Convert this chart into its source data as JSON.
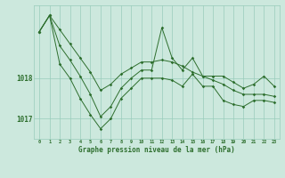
{
  "background_color": "#cce8dd",
  "grid_color": "#99ccbb",
  "line_color": "#2d6e2d",
  "xlabel": "Graphe pression niveau de la mer (hPa)",
  "ylabel_ticks": [
    1017,
    1018
  ],
  "xlim": [
    -0.5,
    23.5
  ],
  "ylim": [
    1016.5,
    1019.8
  ],
  "hours": [
    0,
    1,
    2,
    3,
    4,
    5,
    6,
    7,
    8,
    9,
    10,
    11,
    12,
    13,
    14,
    15,
    16,
    17,
    18,
    19,
    20,
    21,
    22,
    23
  ],
  "line1": [
    1019.15,
    1019.55,
    1019.2,
    1018.85,
    1018.5,
    1018.15,
    1017.7,
    1017.85,
    1018.1,
    1018.25,
    1018.4,
    1018.4,
    1018.45,
    1018.4,
    1018.3,
    1018.15,
    1018.05,
    1017.95,
    1017.85,
    1017.7,
    1017.6,
    1017.6,
    1017.6,
    1017.55
  ],
  "line2": [
    1019.15,
    1019.55,
    1018.8,
    1018.45,
    1018.05,
    1017.6,
    1017.05,
    1017.3,
    1017.75,
    1018.0,
    1018.2,
    1018.2,
    1019.25,
    1018.5,
    1018.2,
    1018.5,
    1018.05,
    1018.05,
    1018.05,
    1017.9,
    1017.75,
    1017.85,
    1018.05,
    1017.8
  ],
  "line3": [
    1019.15,
    1019.55,
    1018.35,
    1018.0,
    1017.5,
    1017.1,
    1016.75,
    1017.0,
    1017.5,
    1017.75,
    1018.0,
    1018.0,
    1018.0,
    1017.95,
    1017.8,
    1018.1,
    1017.8,
    1017.8,
    1017.45,
    1017.35,
    1017.3,
    1017.45,
    1017.45,
    1017.4
  ]
}
